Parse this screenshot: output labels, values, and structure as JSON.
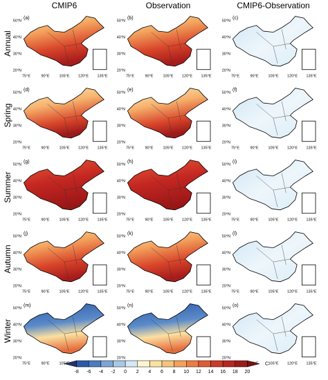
{
  "columns": [
    "CMIP6",
    "Observation",
    "CMIP6-Observation"
  ],
  "rows": [
    "Annual",
    "Spring",
    "Summer",
    "Autumn",
    "Winter"
  ],
  "panels": [
    "(a)",
    "(b)",
    "(c)",
    "(d)",
    "(e)",
    "(f)",
    "(g)",
    "(h)",
    "(i)",
    "(j)",
    "(k)",
    "(l)",
    "(m)",
    "(n)",
    "(o)"
  ],
  "lat_labels": [
    "50°N",
    "40°N",
    "30°N",
    "20°N"
  ],
  "lon_labels": [
    "75°E",
    "90°E",
    "105°E",
    "120°E",
    "135°E"
  ],
  "colorbar": {
    "ticks": [
      "-8",
      "-6",
      "-4",
      "-2",
      "0",
      "2",
      "4",
      "6",
      "8",
      "10",
      "12",
      "14",
      "16",
      "18",
      "20"
    ],
    "unit": "C",
    "colors": [
      "#23336e",
      "#2c59a8",
      "#4a7cc0",
      "#7aa6d6",
      "#a8c9e6",
      "#d6e8f4",
      "#fdf5cf",
      "#fbe0a0",
      "#f6c27c",
      "#f3a15c",
      "#ec7c44",
      "#e05a34",
      "#cc3a28",
      "#b72622",
      "#9c1a1a",
      "#7a0f12"
    ]
  }
}
